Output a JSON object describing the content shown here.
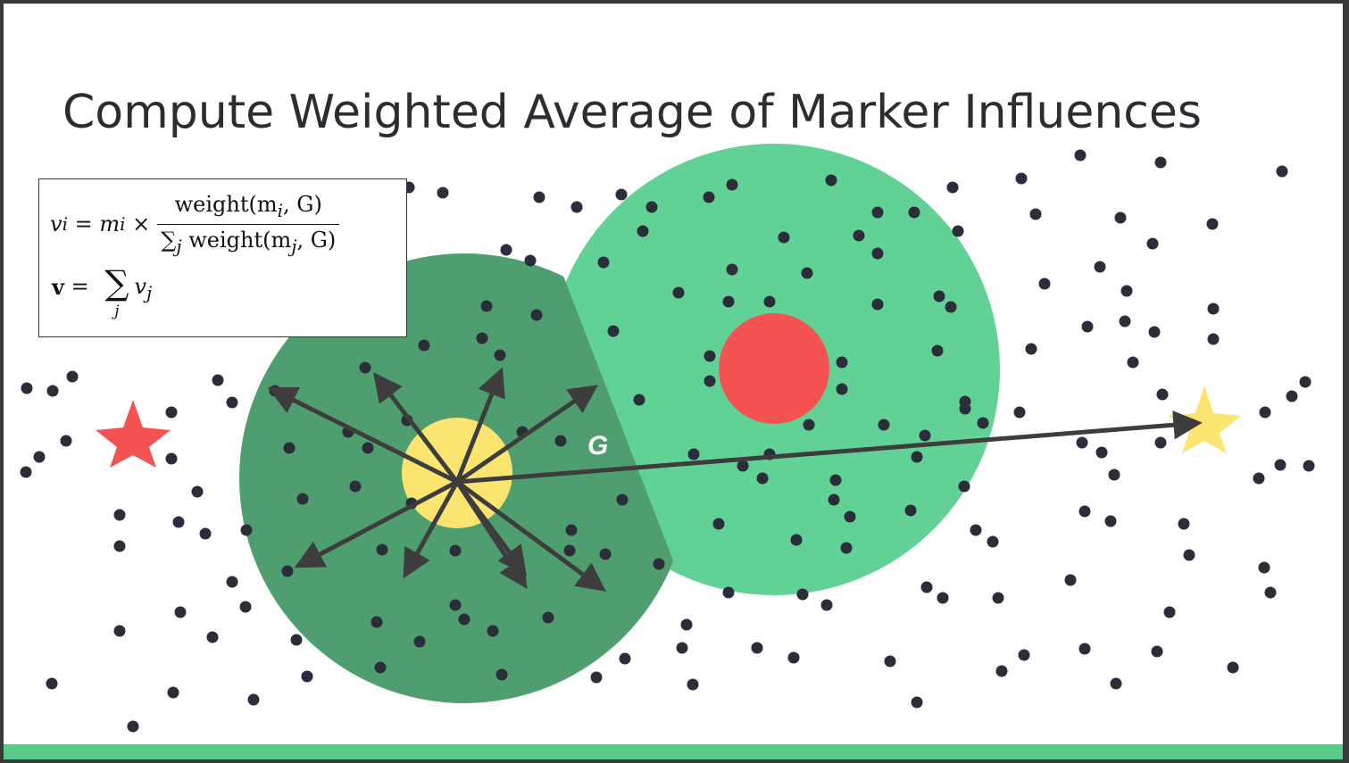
{
  "slide": {
    "title": "Compute Weighted Average of Marker Influences",
    "label_g": "G"
  },
  "formula": {
    "eq1_lhs": "v",
    "eq1_lhs_sub": "i",
    "eq1_mid": " = m",
    "eq1_mid_sub": "i",
    "eq1_times": " ×",
    "eq1_num": "weight(m",
    "eq1_num_sub": "i",
    "eq1_num_tail": ", G)",
    "eq1_den_sum": "∑",
    "eq1_den_sum_sub": "j",
    "eq1_den_text": " weight(m",
    "eq1_den_sub": "j",
    "eq1_den_tail": ", G)",
    "eq2_lhs": "v",
    "eq2_eq": " = ",
    "eq2_sigma": "∑",
    "eq2_sigma_sub": "j",
    "eq2_rhs": "v",
    "eq2_rhs_sub": "j"
  },
  "colors": {
    "background": "#ffffff",
    "dark_region": "#4e9e6f",
    "light_region": "#62d196",
    "marker": "#f45352",
    "agent": "#fbe46f",
    "goal_star": "#fbe46f",
    "start_star": "#f45352",
    "dots": "#2b2d3a",
    "arrows": "#3d3d3d",
    "bottom_bar": "#5ac98a"
  },
  "icons": {
    "start": "red-star-icon",
    "goal": "yellow-star-icon"
  }
}
